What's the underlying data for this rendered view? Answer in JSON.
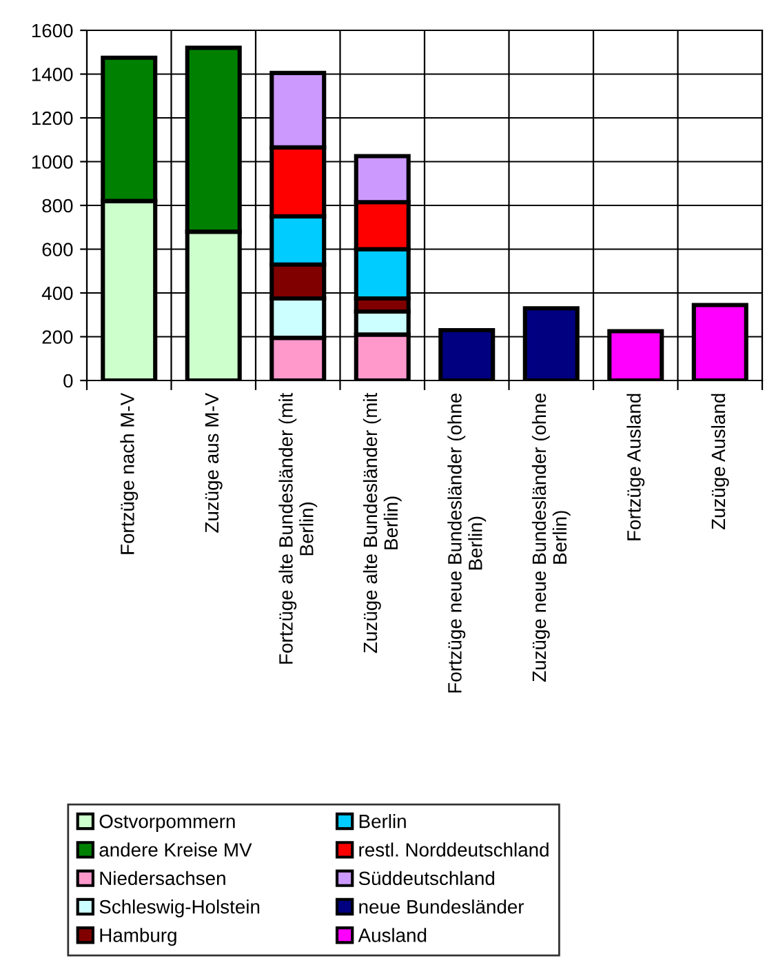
{
  "chart_data": {
    "type": "bar",
    "stacked": true,
    "categories": [
      "Fortzüge nach M-V",
      "Zuzüge aus M-V",
      "Fortzüge alte Bundesländer (mit\nBerlin)",
      "Zuzüge alte Bundesländer (mit\nBerlin)",
      "Fortzüge neue Bundesländer (ohne\nBerlin)",
      "Zuzüge neue Bundesländer (ohne\nBerlin)",
      "Fortzüge Ausland",
      "Zuzüge Ausland"
    ],
    "series": [
      {
        "name": "Ostvorpommern",
        "color": "#ccffcc",
        "values": [
          820,
          680,
          null,
          null,
          null,
          null,
          null,
          null
        ]
      },
      {
        "name": "andere Kreise MV",
        "color": "#008000",
        "values": [
          655,
          840,
          null,
          null,
          null,
          null,
          null,
          null
        ]
      },
      {
        "name": "Niedersachsen",
        "color": "#ff99cc",
        "values": [
          null,
          null,
          195,
          210,
          null,
          null,
          null,
          null
        ]
      },
      {
        "name": "Schleswig-Holstein",
        "color": "#ccffff",
        "values": [
          null,
          null,
          180,
          105,
          null,
          null,
          null,
          null
        ]
      },
      {
        "name": "Hamburg",
        "color": "#800000",
        "values": [
          null,
          null,
          155,
          60,
          null,
          null,
          null,
          null
        ]
      },
      {
        "name": "Berlin",
        "color": "#00ccff",
        "values": [
          null,
          null,
          220,
          225,
          null,
          null,
          null,
          null
        ]
      },
      {
        "name": "restl. Norddeutschland",
        "color": "#ff0000",
        "values": [
          null,
          null,
          315,
          215,
          null,
          null,
          null,
          null
        ]
      },
      {
        "name": "Süddeutschland",
        "color": "#cc99ff",
        "values": [
          null,
          null,
          340,
          210,
          null,
          null,
          null,
          null
        ]
      },
      {
        "name": "neue Bundesländer",
        "color": "#000080",
        "values": [
          null,
          null,
          null,
          null,
          230,
          330,
          null,
          null
        ]
      },
      {
        "name": "Ausland",
        "color": "#ff00ff",
        "values": [
          null,
          null,
          null,
          null,
          null,
          null,
          225,
          345
        ]
      }
    ],
    "ylim": [
      0,
      1600
    ],
    "yticks": [
      0,
      200,
      400,
      600,
      800,
      1000,
      1200,
      1400,
      1600
    ],
    "grid": true,
    "legend": "bottom"
  }
}
